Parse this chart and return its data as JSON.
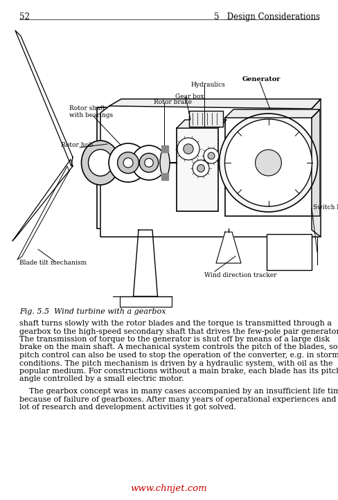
{
  "page_number": "52",
  "chapter_header": "5   Design Considerations",
  "fig_caption": "Fig. 5.5  Wind turbine with a gearbox",
  "paragraph1_part1": "shaft turns slowly with the rotor blades and the torque is transmitted through a",
  "paragraph1_part2": "gearbox to the high-speed secondary shaft that drives the few-pole pair generator.",
  "paragraph1_part3": "The transmission of torque to the generator is shut off by means of a large disk",
  "paragraph1_part4": "brake on the main shaft. A mechanical system controls the pitch of the blades, so",
  "paragraph1_part5": "pitch control can also be used to stop the operation of the converter, e.g. in stormy",
  "paragraph1_part6": "conditions. The pitch mechanism is driven by a hydraulic system, with oil as the",
  "paragraph1_part7": "popular medium. For constructions without a main brake, each blade has its pitch",
  "paragraph1_part8": "angle controlled by a small electric motor.",
  "paragraph2_part1": "    The gearbox concept was in many cases accompanied by an insufficient life time",
  "paragraph2_part2": "because of failure of gearboxes. After many years of operational experiences and a",
  "paragraph2_part3": "lot of research and development activities it got solved.",
  "watermark": "www.chnjet.com",
  "bg": "#ffffff",
  "text_color": "#000000",
  "watermark_color": "#cc0000",
  "body_fontsize": 8.0,
  "caption_fontsize": 8.0,
  "header_fontsize": 8.5,
  "label_fontsize": 6.5
}
